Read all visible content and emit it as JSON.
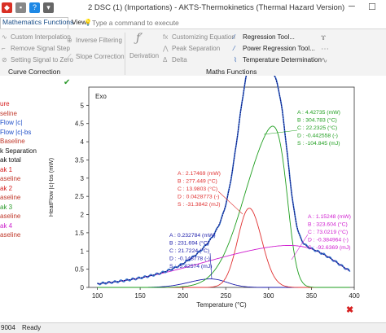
{
  "window": {
    "title": "2 DSC (1) (Importations) - AKTS-Thermokinetics (Thermal Hazard Version)",
    "minimize": "─",
    "maximize": "☐"
  },
  "tabs": {
    "math": "Mathematics Functions",
    "view": "View",
    "command_placeholder": "Type a command to execute"
  },
  "ribbon": {
    "custom_interpolation": "Custom Interpolation",
    "remove_signal_step": "Remove Signal Step",
    "setting_signal_zero": "Setting Signal to Zero",
    "inverse_filtering": "Inverse Filtering",
    "slope_correction": "Slope Correction",
    "derivation": "Derivation",
    "customizing_equation": "Customizing Equation",
    "peak_separation": "Peak Separation",
    "delta": "Delta",
    "regression_tool": "Regression Tool...",
    "power_regression_tool": "Power Regression Tool...",
    "temperature_determination": "Temperature Determination",
    "group_curve": "Curve Correction",
    "group_math": "Maths Functions"
  },
  "left_panel": [
    {
      "text": "ure",
      "color": "#d62020"
    },
    {
      "text": "seline",
      "color": "#c0392b"
    },
    {
      "text": "Flow |c|",
      "color": "#2050c8"
    },
    {
      "text": "Flow |c|-bs",
      "color": "#2050c8"
    },
    {
      "text": "Baseline",
      "color": "#c0392b"
    },
    {
      "text": "k Separation",
      "color": "#111111"
    },
    {
      "text": "ak total",
      "color": "#111111"
    },
    {
      "text": "ak 1",
      "color": "#d62020"
    },
    {
      "text": "aseline",
      "color": "#c0392b"
    },
    {
      "text": "ak 2",
      "color": "#d62020"
    },
    {
      "text": "aseline",
      "color": "#c0392b"
    },
    {
      "text": "ak 3",
      "color": "#2a9a2a"
    },
    {
      "text": "aseline",
      "color": "#c0392b"
    },
    {
      "text": "ak 4",
      "color": "#cc22cc"
    },
    {
      "text": "aseline",
      "color": "#c0392b"
    }
  ],
  "status": {
    "left": "9004",
    "state": "Ready"
  },
  "colors": {
    "peak1": "#e03030",
    "peak2": "#1a1aaa",
    "peak3": "#1e9e1e",
    "peak4": "#d020d0",
    "total": "#0a0a7a",
    "measured": "#3a78d0"
  },
  "chart_data": {
    "type": "line",
    "title": "Exo",
    "xlabel": "Temperature (°C)",
    "ylabel": "HeatFlow |c|-bs (mW)",
    "xlim": [
      90,
      400
    ],
    "ylim": [
      0,
      5.5
    ],
    "xticks": [
      100,
      150,
      200,
      250,
      300,
      350,
      400
    ],
    "yticks": [
      0,
      0.5,
      1,
      1.5,
      2,
      2.5,
      3,
      3.5,
      4,
      4.5,
      5
    ],
    "ytick_labels": [
      "0",
      "0.5",
      "1",
      "1.5",
      "2",
      "2.5",
      "3",
      "3.5",
      "4",
      "4.5",
      "5"
    ],
    "peaks": [
      {
        "A": 0.232784,
        "B": 231.694,
        "C": 21.7224,
        "D": -0.148778,
        "color": "#1a1aaa"
      },
      {
        "A": 2.17469,
        "B": 277.449,
        "C": 13.9803,
        "D": 0.0428773,
        "color": "#e03030"
      },
      {
        "A": 4.42735,
        "B": 304.783,
        "C": 22.2325,
        "D": -0.442558,
        "color": "#1e9e1e"
      },
      {
        "A": 1.15248,
        "B": 323.604,
        "C": 73.0219,
        "D": -0.384964,
        "color": "#d020d0"
      }
    ],
    "annotations": [
      {
        "color": "#1a1aaa",
        "lines": [
          "A : 0.232784 (mW)",
          "B : 231.694 (°C)",
          "C : 21.7224 (°C)",
          "D : -0.148778 (-)",
          "S : -5.42574 (mJ)"
        ]
      },
      {
        "color": "#e03030",
        "lines": [
          "A : 2.17469 (mW)",
          "B : 277.449 (°C)",
          "C : 13.9803 (°C)",
          "D : 0.0428773 (-)",
          "S : -31.3842 (mJ)"
        ]
      },
      {
        "color": "#1e9e1e",
        "lines": [
          "A : 4.42735 (mW)",
          "B : 304.783 (°C)",
          "C : 22.2325 (°C)",
          "D : -0.442558 (-)",
          "S : -104.845 (mJ)"
        ]
      },
      {
        "color": "#d020d0",
        "lines": [
          "A : 1.15248 (mW)",
          "B : 323.604 (°C)",
          "C : 73.0219 (°C)",
          "D : -0.384964 (-)",
          "S : -92.6369 (mJ)"
        ]
      }
    ]
  }
}
